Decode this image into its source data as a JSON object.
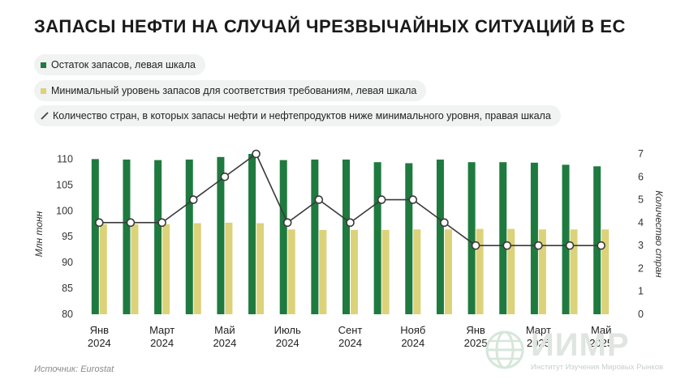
{
  "title": "Запасы нефти на случай чрезвычайных ситуаций в ЕС",
  "legend": [
    {
      "label": "Остаток запасов, левая шкала",
      "color": "#1f7a3f",
      "kind": "bar"
    },
    {
      "label": "Минимальный уровень запасов для соответствия требованиям, левая шкала",
      "color": "#dcd27a",
      "kind": "bar"
    },
    {
      "label": "Количество стран, в которых запасы нефти и нефтепродуктов ниже минимального уровня, правая шкала",
      "color": "#3a3a3a",
      "kind": "line"
    }
  ],
  "source": "Источник: Eurostat",
  "logo": {
    "name": "ИИМР",
    "subtitle": "Институт Изучения Мировых Рынков",
    "icon": "globe-icon"
  },
  "chart_data": {
    "type": "bar",
    "ylabel": "Млн тонн",
    "y2label": "Количество стран",
    "ylim": [
      80,
      111
    ],
    "y2lim": [
      0,
      7
    ],
    "yticks": [
      80,
      85,
      90,
      95,
      100,
      105,
      110
    ],
    "y2ticks": [
      0,
      1,
      2,
      3,
      4,
      5,
      6,
      7
    ],
    "grid": false,
    "x_tick_labels": [
      {
        "index": 0,
        "line1": "Янв",
        "line2": "2024"
      },
      {
        "index": 2,
        "line1": "Март",
        "line2": "2024"
      },
      {
        "index": 4,
        "line1": "Май",
        "line2": "2024"
      },
      {
        "index": 6,
        "line1": "Июль",
        "line2": "2024"
      },
      {
        "index": 8,
        "line1": "Сент",
        "line2": "2024"
      },
      {
        "index": 10,
        "line1": "Нояб",
        "line2": "2024"
      },
      {
        "index": 12,
        "line1": "Янв",
        "line2": "2025"
      },
      {
        "index": 14,
        "line1": "Март",
        "line2": "2025"
      },
      {
        "index": 16,
        "line1": "Май",
        "line2": "2025"
      }
    ],
    "series": [
      {
        "name": "Остаток запасов, левая шкала",
        "type": "bar",
        "color": "#1f7a3f",
        "values": [
          110,
          109.9,
          109.8,
          109.9,
          110.4,
          111,
          109.8,
          109.9,
          109.9,
          109.4,
          109.2,
          109.9,
          109.4,
          109.4,
          109.3,
          108.9,
          108.6
        ]
      },
      {
        "name": "Минимальный уровень запасов для соответствия требованиям, левая шкала",
        "type": "bar",
        "color": "#dcd27a",
        "values": [
          97.4,
          97.4,
          97.4,
          97.6,
          97.7,
          97.6,
          96.4,
          96.3,
          96.3,
          96.3,
          96.4,
          96.4,
          96.5,
          96.5,
          96.4,
          96.4,
          96.4
        ]
      },
      {
        "name": "Количество стран, в которых запасы нефти и нефтепродуктов ниже минимального уровня, правая шкала",
        "type": "line",
        "axis": "right",
        "color": "#3a3a3a",
        "values": [
          4,
          4,
          4,
          5,
          6,
          7,
          4,
          5,
          4,
          5,
          5,
          4,
          3,
          3,
          3,
          3,
          3
        ]
      }
    ]
  }
}
